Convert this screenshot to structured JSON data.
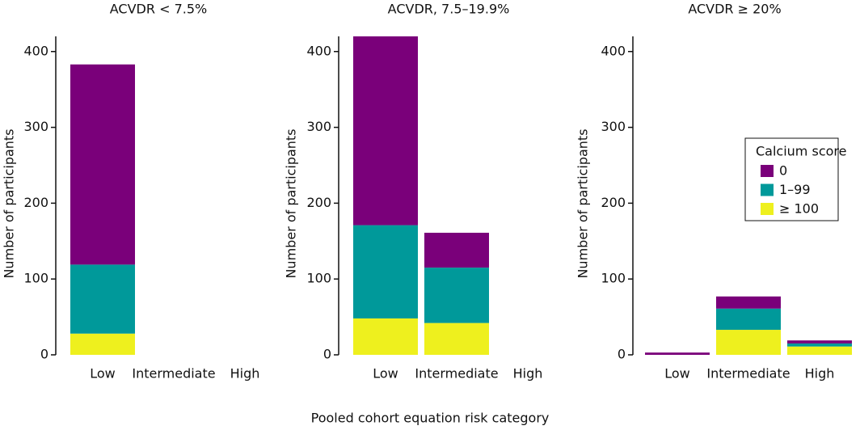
{
  "chart_data": [
    {
      "type": "bar",
      "stacked": true,
      "title": "ACVDR < 7.5%",
      "y_label": "Number of participants",
      "categories": [
        "Low",
        "Intermediate",
        "High"
      ],
      "series": [
        {
          "color": "#7a007a",
          "values": [
            264,
            0,
            0
          ]
        },
        {
          "color": "#00999a",
          "values": [
            91,
            0,
            0
          ]
        },
        {
          "color": "#eef01e",
          "values": [
            28,
            0,
            0
          ]
        }
      ],
      "ylim": [
        0,
        420
      ],
      "yticks": [
        0,
        100,
        200,
        300,
        400
      ]
    },
    {
      "type": "bar",
      "stacked": true,
      "title": "ACVDR, 7.5–19.9%",
      "y_label": "Number of participants",
      "categories": [
        "Low",
        "Intermediate",
        "High"
      ],
      "series": [
        {
          "color": "#7a007a",
          "values": [
            249,
            46,
            0
          ]
        },
        {
          "color": "#00999a",
          "values": [
            123,
            73,
            0
          ]
        },
        {
          "color": "#eef01e",
          "values": [
            48,
            42,
            0
          ]
        }
      ],
      "ylim": [
        0,
        420
      ],
      "yticks": [
        0,
        100,
        200,
        300,
        400
      ]
    },
    {
      "type": "bar",
      "stacked": true,
      "title": "ACVDR ≥ 20%",
      "y_label": "Number of participants",
      "categories": [
        "Low",
        "Intermediate",
        "High"
      ],
      "series": [
        {
          "name": "0",
          "color": "#7a007a",
          "values": [
            3,
            16,
            4
          ]
        },
        {
          "name": "1–99",
          "color": "#00999a",
          "values": [
            0,
            28,
            4
          ]
        },
        {
          "name": "≥ 100",
          "color": "#eef01e",
          "values": [
            0,
            33,
            11
          ]
        }
      ],
      "ylim": [
        0,
        420
      ],
      "yticks": [
        0,
        100,
        200,
        300,
        400
      ],
      "legend": "right",
      "legend_title": "Calcium score"
    }
  ],
  "x_label": "Pooled cohort equation risk category"
}
